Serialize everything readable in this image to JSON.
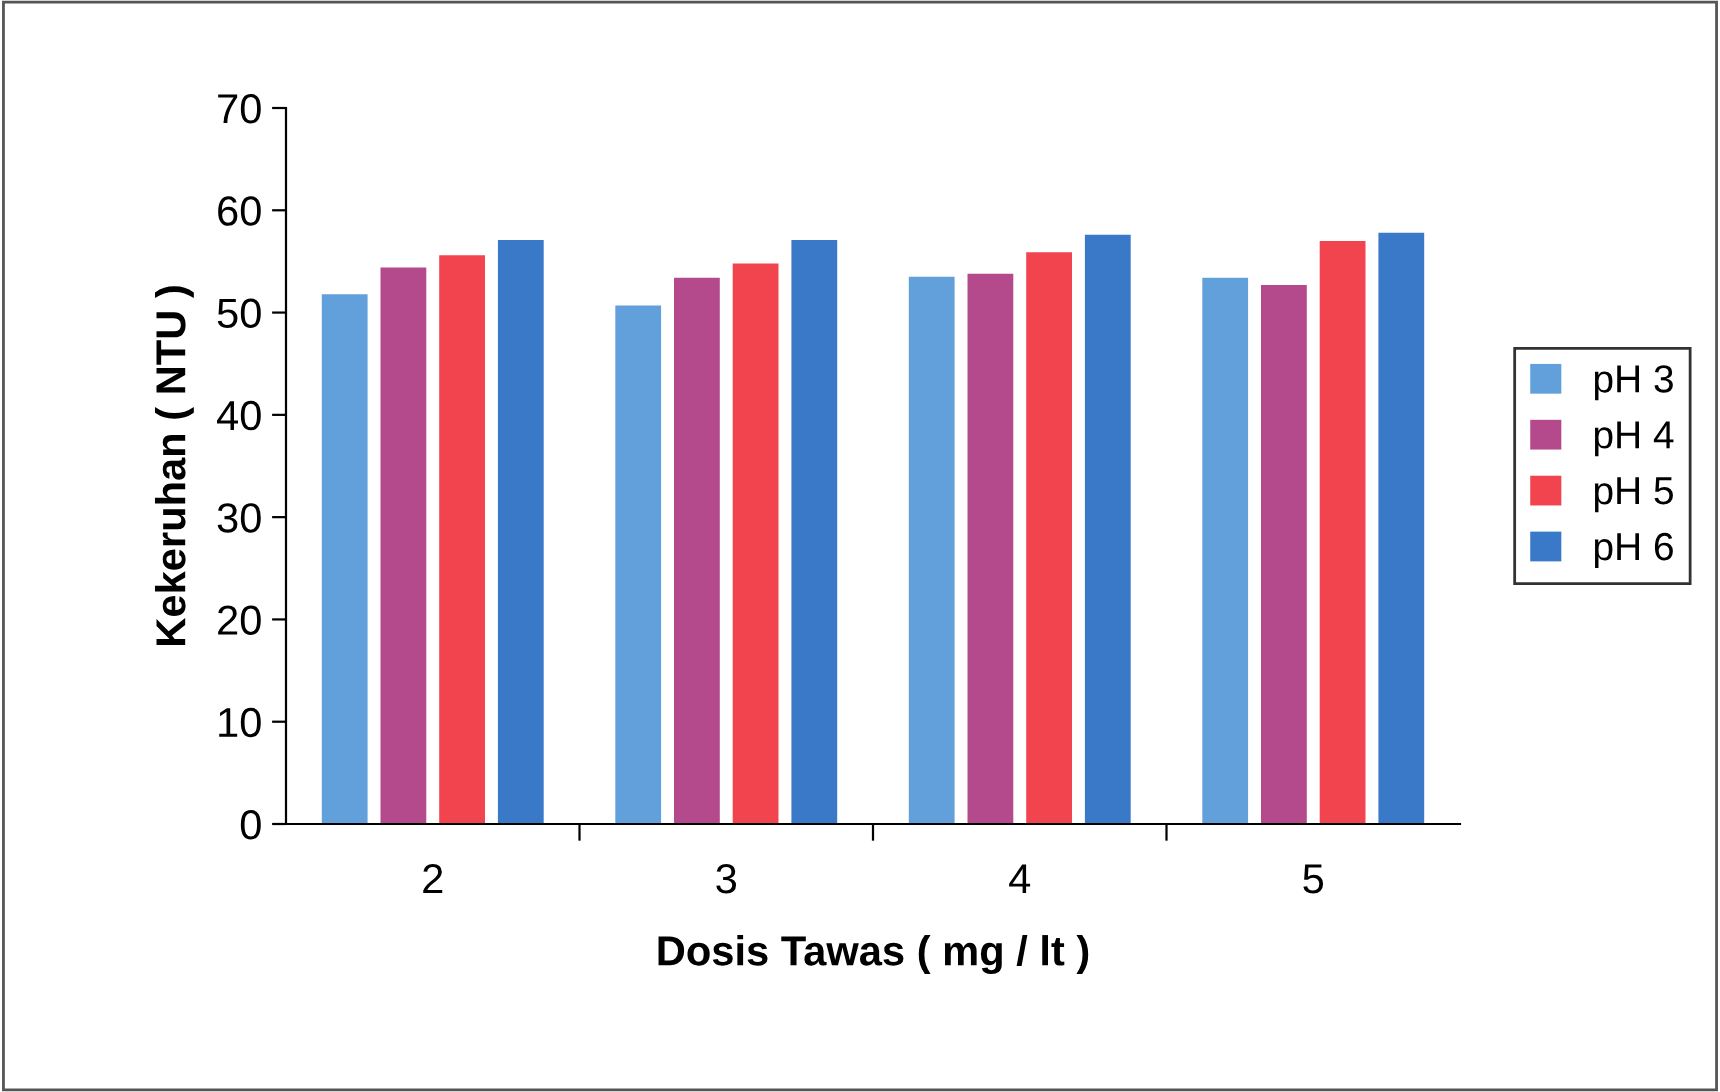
{
  "chart_data": {
    "type": "bar",
    "xlabel": "Dosis Tawas ( mg / lt )",
    "ylabel": "Kekeruhan ( NTU )",
    "categories": [
      "2",
      "3",
      "4",
      "5"
    ],
    "series": [
      {
        "name": "pH 3",
        "color": "#62a0dc",
        "values": [
          51.8,
          50.7,
          53.5,
          53.4
        ]
      },
      {
        "name": "pH 4",
        "color": "#b44a8c",
        "values": [
          54.4,
          53.4,
          53.8,
          52.7
        ]
      },
      {
        "name": "pH 5",
        "color": "#f2444f",
        "values": [
          55.6,
          54.8,
          55.9,
          57.0
        ]
      },
      {
        "name": "pH 6",
        "color": "#3a78c8",
        "values": [
          57.1,
          57.1,
          57.6,
          57.8
        ]
      }
    ],
    "ylim": [
      0,
      70
    ],
    "yticks": [
      0,
      10,
      20,
      30,
      40,
      50,
      60,
      70
    ],
    "grid": false,
    "legend": "right"
  }
}
